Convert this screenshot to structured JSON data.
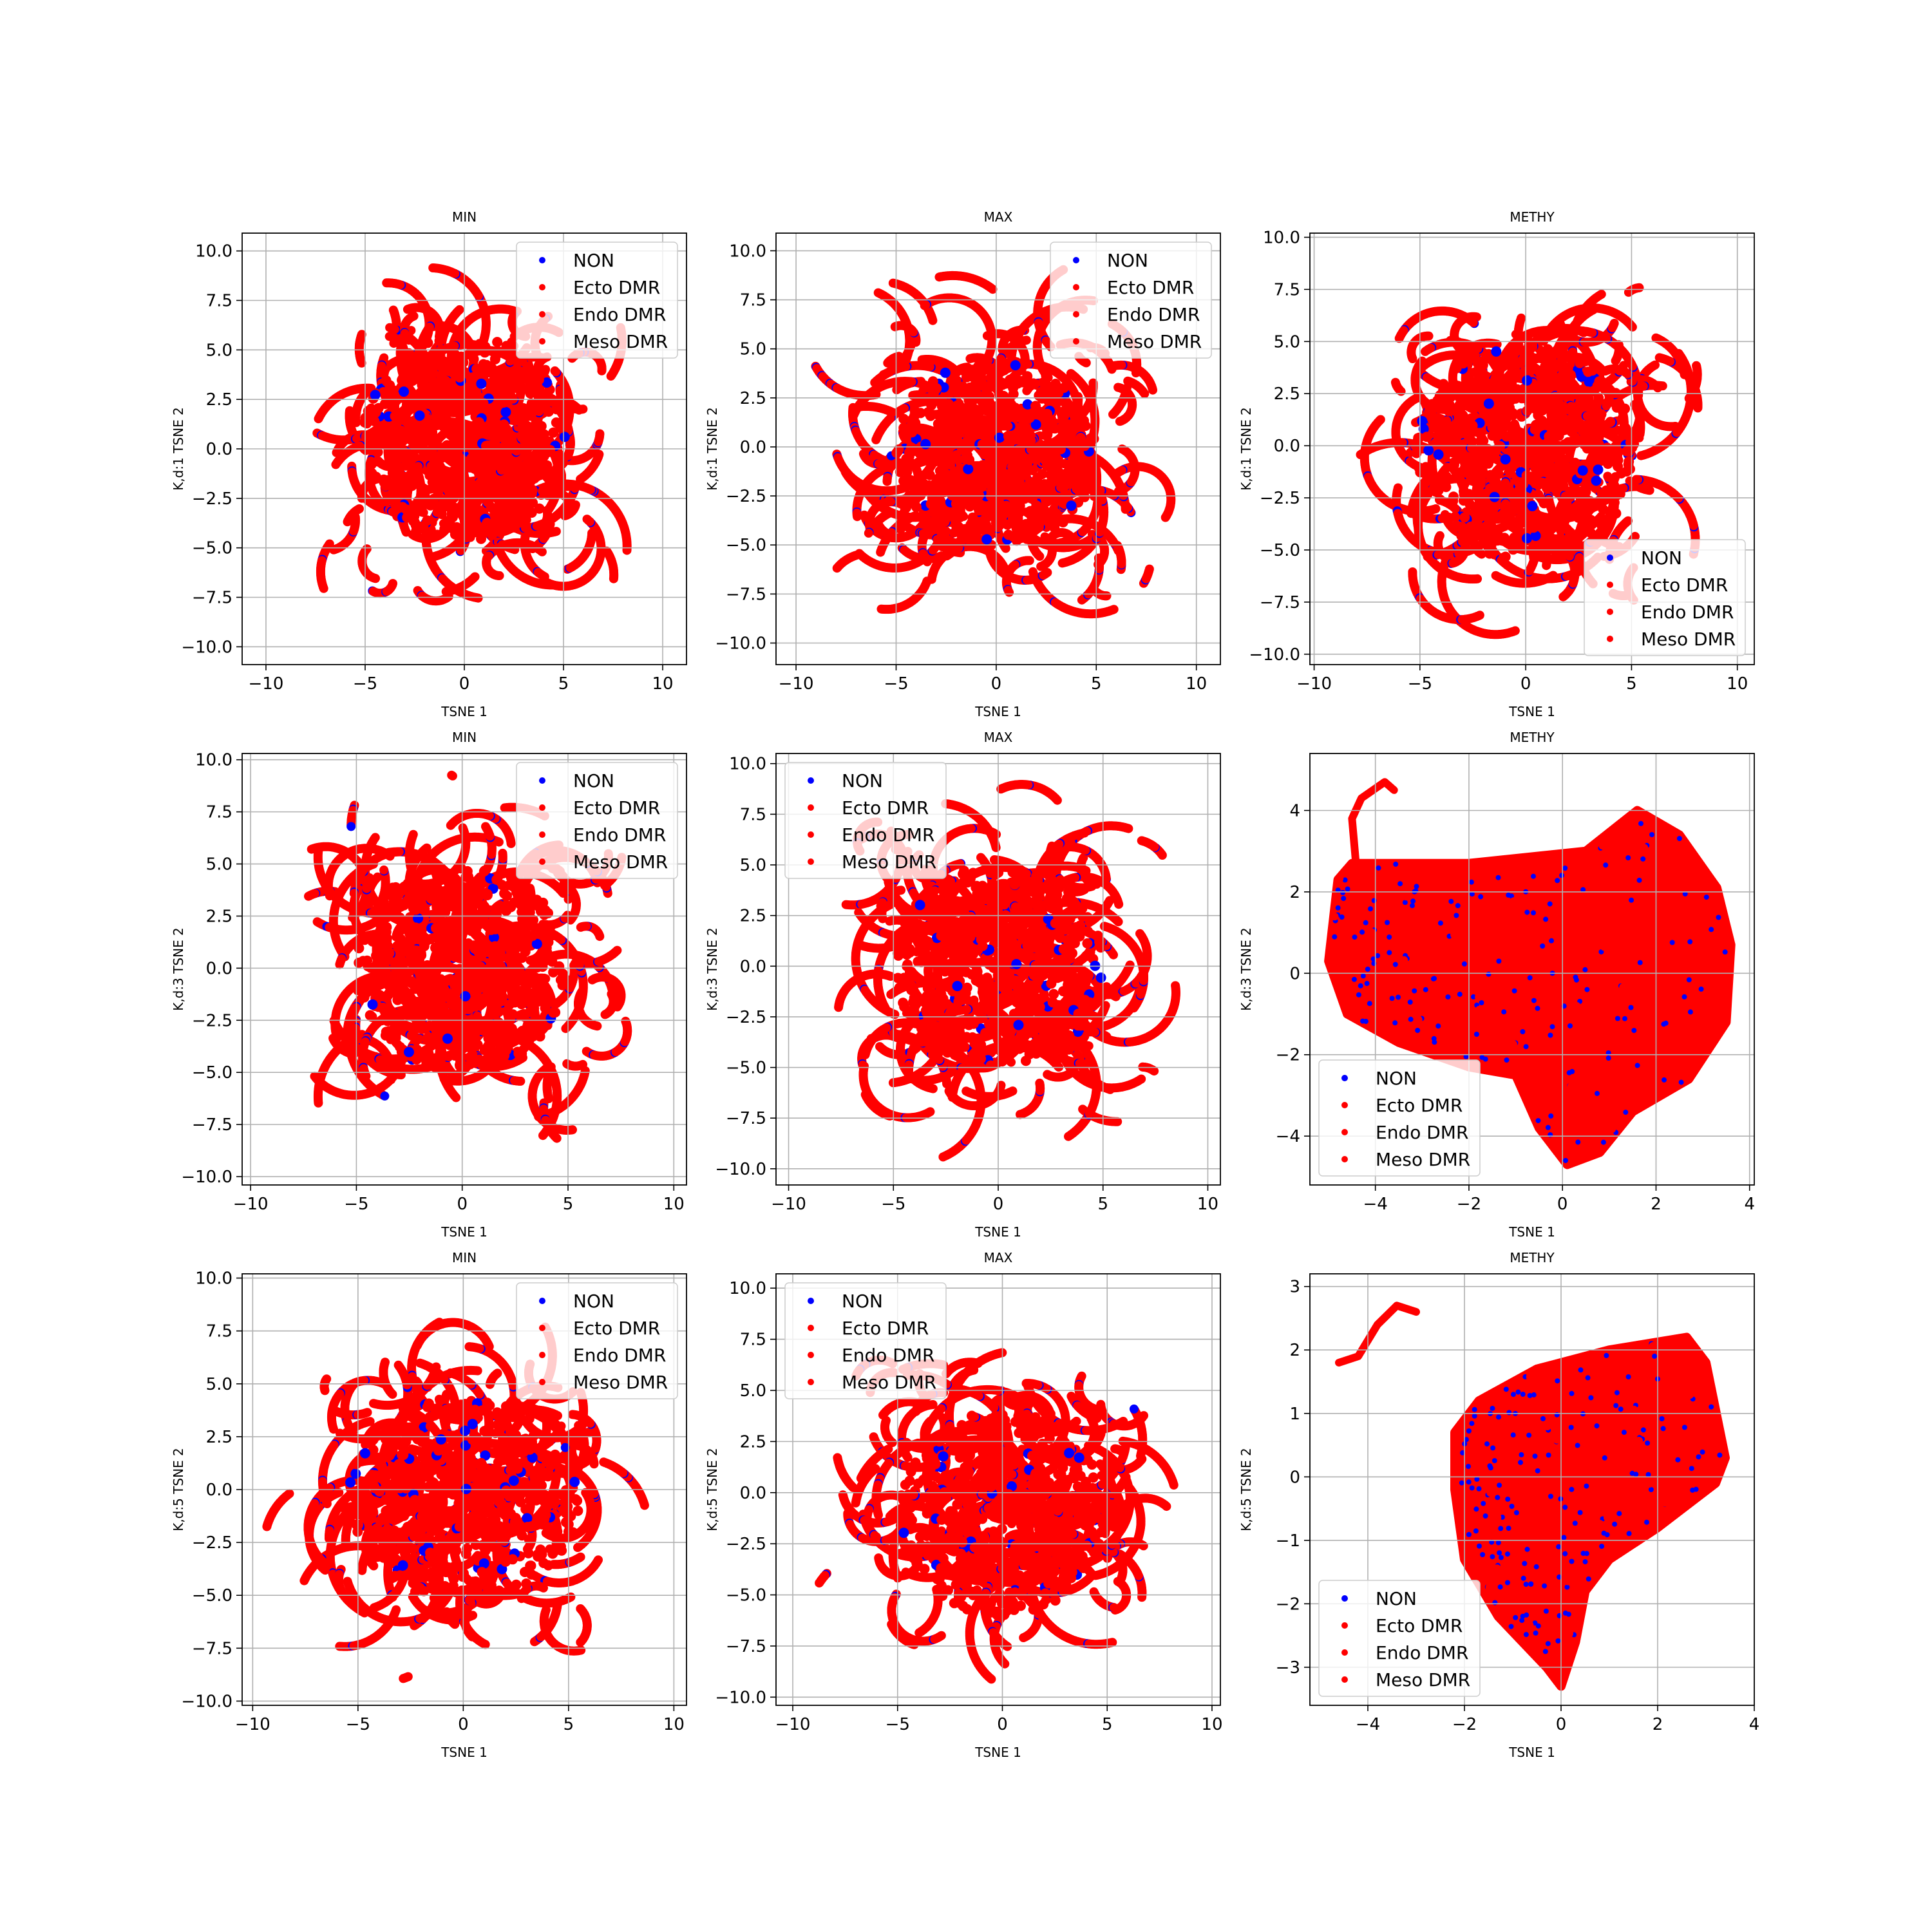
{
  "chart_data": [
    {
      "type": "scatter",
      "title": "MIN",
      "xlabel": "TSNE 1",
      "ylabel": "K,d:1 TSNE 2",
      "xlim": [
        -11.2,
        11.2
      ],
      "ylim": [
        -10.9,
        10.9
      ],
      "xticks": [
        -10,
        -5,
        0,
        5,
        10
      ],
      "yticks": [
        -10.0,
        -7.5,
        -5.0,
        -2.5,
        0.0,
        2.5,
        5.0,
        7.5,
        10.0
      ],
      "xtick_labels": [
        "−10",
        "−5",
        "0",
        "5",
        "10"
      ],
      "ytick_labels": [
        "−10.0",
        "−7.5",
        "−5.0",
        "−2.5",
        "0.0",
        "2.5",
        "5.0",
        "7.5",
        "10.0"
      ],
      "shape": "disc",
      "cloud": {
        "cx": 0,
        "cy": 0,
        "rx": 10,
        "ry": 10,
        "core_rx": 5.2,
        "core_ry": 5.2,
        "core_cy": 0.5
      },
      "legend": "top-right",
      "grid": true,
      "seed": 11
    },
    {
      "type": "scatter",
      "title": "MAX",
      "xlabel": "TSNE 1",
      "ylabel": "K,d:1 TSNE 2",
      "xlim": [
        -11,
        11.2
      ],
      "ylim": [
        -11.1,
        10.9
      ],
      "xticks": [
        -10,
        -5,
        0,
        5,
        10
      ],
      "yticks": [
        -10.0,
        -7.5,
        -5.0,
        -2.5,
        0.0,
        2.5,
        5.0,
        7.5,
        10.0
      ],
      "xtick_labels": [
        "−10",
        "−5",
        "0",
        "5",
        "10"
      ],
      "ytick_labels": [
        "−10.0",
        "−7.5",
        "−5.0",
        "−2.5",
        "0.0",
        "2.5",
        "5.0",
        "7.5",
        "10.0"
      ],
      "shape": "disc",
      "cloud": {
        "cx": 0,
        "cy": -0.2,
        "rx": 10,
        "ry": 10,
        "core_rx": 5,
        "core_ry": 4.8,
        "core_cy": -0.3
      },
      "legend": "top-right",
      "grid": true,
      "seed": 23
    },
    {
      "type": "scatter",
      "title": "METHY",
      "xlabel": "TSNE 1",
      "ylabel": "K,d:1 TSNE 2",
      "xlim": [
        -10.2,
        10.8
      ],
      "ylim": [
        -10.5,
        10.2
      ],
      "xticks": [
        -10,
        -5,
        0,
        5,
        10
      ],
      "yticks": [
        -10.0,
        -7.5,
        -5.0,
        -2.5,
        0.0,
        2.5,
        5.0,
        7.5,
        10.0
      ],
      "xtick_labels": [
        "−10",
        "−5",
        "0",
        "5",
        "10"
      ],
      "ytick_labels": [
        "−10.0",
        "−7.5",
        "−5.0",
        "−2.5",
        "0.0",
        "2.5",
        "5.0",
        "7.5",
        "10.0"
      ],
      "shape": "disc",
      "cloud": {
        "cx": 0,
        "cy": 0,
        "rx": 9.5,
        "ry": 9.5,
        "core_rx": 5.2,
        "core_ry": 5.2,
        "core_cy": -0.3
      },
      "legend": "lower-right",
      "grid": true,
      "seed": 37
    },
    {
      "type": "scatter",
      "title": "MIN",
      "xlabel": "TSNE 1",
      "ylabel": "K,d:3 TSNE 2",
      "xlim": [
        -10.4,
        10.6
      ],
      "ylim": [
        -10.4,
        10.3
      ],
      "xticks": [
        -10,
        -5,
        0,
        5,
        10
      ],
      "yticks": [
        -10.0,
        -7.5,
        -5.0,
        -2.5,
        0.0,
        2.5,
        5.0,
        7.5,
        10.0
      ],
      "xtick_labels": [
        "−10",
        "−5",
        "0",
        "5",
        "10"
      ],
      "ytick_labels": [
        "−10.0",
        "−7.5",
        "−5.0",
        "−2.5",
        "0.0",
        "2.5",
        "5.0",
        "7.5",
        "10.0"
      ],
      "shape": "disc",
      "cloud": {
        "cx": 0,
        "cy": 0,
        "rx": 9.5,
        "ry": 9.3,
        "core_rx": 5,
        "core_ry": 5,
        "core_cy": 0
      },
      "legend": "top-right",
      "grid": true,
      "seed": 41
    },
    {
      "type": "scatter",
      "title": "MAX",
      "xlabel": "TSNE 1",
      "ylabel": "K,d:3 TSNE 2",
      "xlim": [
        -10.6,
        10.6
      ],
      "ylim": [
        -10.8,
        10.5
      ],
      "xticks": [
        -10,
        -5,
        0,
        5,
        10
      ],
      "yticks": [
        -10.0,
        -7.5,
        -5.0,
        -2.5,
        0.0,
        2.5,
        5.0,
        7.5,
        10.0
      ],
      "xtick_labels": [
        "−10",
        "−5",
        "0",
        "5",
        "10"
      ],
      "ytick_labels": [
        "−10.0",
        "−7.5",
        "−5.0",
        "−2.5",
        "0.0",
        "2.5",
        "5.0",
        "7.5",
        "10.0"
      ],
      "shape": "disc",
      "cloud": {
        "cx": 0,
        "cy": -0.1,
        "rx": 9.8,
        "ry": 9.7,
        "core_rx": 5,
        "core_ry": 5,
        "core_cy": 0
      },
      "legend": "top-left",
      "grid": true,
      "seed": 53
    },
    {
      "type": "scatter",
      "title": "METHY",
      "xlabel": "TSNE 1",
      "ylabel": "K,d:3 TSNE 2",
      "xlim": [
        -5.4,
        4.1
      ],
      "ylim": [
        -5.2,
        5.4
      ],
      "xticks": [
        -4,
        -2,
        0,
        2,
        4
      ],
      "yticks": [
        -4,
        -2,
        0,
        2,
        4
      ],
      "xtick_labels": [
        "−4",
        "−2",
        "0",
        "2",
        "4"
      ],
      "ytick_labels": [
        "−4",
        "−2",
        "0",
        "2",
        "4"
      ],
      "shape": "blob",
      "polygon": [
        [
          -5.0,
          0.3
        ],
        [
          -4.8,
          2.3
        ],
        [
          -4.5,
          2.7
        ],
        [
          -2.0,
          2.7
        ],
        [
          0.5,
          3.0
        ],
        [
          1.6,
          4.0
        ],
        [
          2.5,
          3.4
        ],
        [
          3.3,
          2.1
        ],
        [
          3.6,
          0.7
        ],
        [
          3.5,
          -1.2
        ],
        [
          2.7,
          -2.6
        ],
        [
          1.5,
          -3.4
        ],
        [
          0.8,
          -4.4
        ],
        [
          0.1,
          -4.7
        ],
        [
          -0.5,
          -3.8
        ],
        [
          -1.0,
          -2.5
        ],
        [
          -2.0,
          -2.3
        ],
        [
          -3.5,
          -1.7
        ],
        [
          -4.6,
          -1.0
        ]
      ],
      "arm": [
        [
          -4.4,
          2.5
        ],
        [
          -4.5,
          3.8
        ],
        [
          -4.3,
          4.3
        ],
        [
          -3.8,
          4.7
        ],
        [
          -3.6,
          4.5
        ]
      ],
      "legend": "lower-left",
      "grid": true,
      "seed": 67
    },
    {
      "type": "scatter",
      "title": "MIN",
      "xlabel": "TSNE 1",
      "ylabel": "K,d:5 TSNE 2",
      "xlim": [
        -10.5,
        10.6
      ],
      "ylim": [
        -10.2,
        10.2
      ],
      "xticks": [
        -10,
        -5,
        0,
        5,
        10
      ],
      "yticks": [
        -10.0,
        -7.5,
        -5.0,
        -2.5,
        0.0,
        2.5,
        5.0,
        7.5,
        10.0
      ],
      "xtick_labels": [
        "−10",
        "−5",
        "0",
        "5",
        "10"
      ],
      "ytick_labels": [
        "−10.0",
        "−7.5",
        "−5.0",
        "−2.5",
        "0.0",
        "2.5",
        "5.0",
        "7.5",
        "10.0"
      ],
      "shape": "disc",
      "cloud": {
        "cx": 0,
        "cy": -0.1,
        "rx": 9.5,
        "ry": 9.3,
        "core_rx": 5.5,
        "core_ry": 4.8,
        "core_cy": -0.5
      },
      "legend": "top-right",
      "grid": true,
      "seed": 71
    },
    {
      "type": "scatter",
      "title": "MAX",
      "xlabel": "TSNE 1",
      "ylabel": "K,d:5 TSNE 2",
      "xlim": [
        -10.8,
        10.4
      ],
      "ylim": [
        -10.4,
        10.7
      ],
      "xticks": [
        -10,
        -5,
        0,
        5,
        10
      ],
      "yticks": [
        -10.0,
        -7.5,
        -5.0,
        -2.5,
        0.0,
        2.5,
        5.0,
        7.5,
        10.0
      ],
      "xtick_labels": [
        "−10",
        "−5",
        "0",
        "5",
        "10"
      ],
      "ytick_labels": [
        "−10.0",
        "−7.5",
        "−5.0",
        "−2.5",
        "0.0",
        "2.5",
        "5.0",
        "7.5",
        "10.0"
      ],
      "shape": "disc",
      "cloud": {
        "cx": 0,
        "cy": -0.5,
        "rx": 9.6,
        "ry": 9.6,
        "core_rx": 5,
        "core_ry": 5,
        "core_cy": -1
      },
      "legend": "top-left",
      "grid": true,
      "seed": 83
    },
    {
      "type": "scatter",
      "title": "METHY",
      "xlabel": "TSNE 1",
      "ylabel": "K,d:5 TSNE 2",
      "xlim": [
        -5.2,
        4.0
      ],
      "ylim": [
        -3.6,
        3.2
      ],
      "xticks": [
        -4,
        -2,
        0,
        2,
        4
      ],
      "yticks": [
        -3,
        -2,
        -1,
        0,
        1,
        2,
        3
      ],
      "xtick_labels": [
        "−4",
        "−2",
        "0",
        "2",
        "4"
      ],
      "ytick_labels": [
        "−3",
        "−2",
        "−1",
        "0",
        "1",
        "2",
        "3"
      ],
      "shape": "blob",
      "polygon": [
        [
          -2.2,
          0.7
        ],
        [
          -1.7,
          1.2
        ],
        [
          -0.5,
          1.7
        ],
        [
          1.0,
          2.0
        ],
        [
          2.6,
          2.2
        ],
        [
          3.0,
          1.8
        ],
        [
          3.4,
          0.3
        ],
        [
          3.2,
          -0.1
        ],
        [
          2.0,
          -0.8
        ],
        [
          1.0,
          -1.3
        ],
        [
          0.5,
          -1.8
        ],
        [
          0.3,
          -2.6
        ],
        [
          0.0,
          -3.3
        ],
        [
          -0.3,
          -3.0
        ],
        [
          -1.3,
          -2.2
        ],
        [
          -2.0,
          -1.3
        ],
        [
          -2.2,
          -0.2
        ]
      ],
      "arm": [
        [
          -4.6,
          1.8
        ],
        [
          -4.2,
          1.9
        ],
        [
          -3.8,
          2.4
        ],
        [
          -3.4,
          2.7
        ],
        [
          -3.0,
          2.6
        ]
      ],
      "legend": "lower-left",
      "grid": true,
      "seed": 97
    }
  ],
  "legend": {
    "entries": [
      "NON",
      "Ecto DMR",
      "Endo DMR",
      "Meso DMR"
    ],
    "colors": [
      "#0000ff",
      "#ff0000",
      "#ff0000",
      "#ff0000"
    ]
  },
  "colors": {
    "non": "#0000ff",
    "dmr": "#ff0000",
    "grid": "#b0b0b0"
  }
}
